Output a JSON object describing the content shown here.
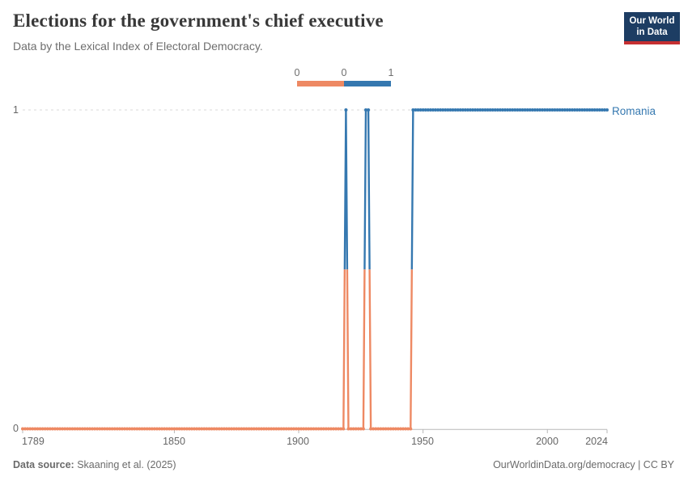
{
  "header": {
    "title": "Elections for the government's chief executive",
    "subtitle": "Data by the Lexical Index of Electoral Democracy.",
    "logo_line1": "Our World",
    "logo_line2": "in Data"
  },
  "legend": {
    "labels": [
      "0",
      "0",
      "1"
    ]
  },
  "footer": {
    "source_label": "Data source:",
    "source_text": " Skaaning et al. (2025)",
    "credit": "OurWorldinData.org/democracy | CC BY"
  },
  "chart_data": {
    "type": "line",
    "title": "Elections for the government's chief executive",
    "subtitle": "Data by the Lexical Index of Electoral Democracy.",
    "entity": "Romania",
    "xlim": [
      1789,
      2024
    ],
    "ylim": [
      0,
      1
    ],
    "x_tick_labels": [
      "1789",
      "1850",
      "1900",
      "1950",
      "2000",
      "2024"
    ],
    "x_tick_years": [
      1789,
      1850,
      1900,
      1950,
      2000,
      2024
    ],
    "y_tick_labels": [
      "0",
      "1"
    ],
    "grid": "dashed gridline at y=1 only",
    "legend_position": "top-center",
    "series": [
      {
        "name": "Romania",
        "segments": [
          {
            "from": 1789,
            "to": 1918,
            "value": 0
          },
          {
            "from": 1919,
            "to": 1919,
            "value": 1
          },
          {
            "from": 1920,
            "to": 1926,
            "value": 0
          },
          {
            "from": 1927,
            "to": 1928,
            "value": 1
          },
          {
            "from": 1929,
            "to": 1945,
            "value": 0
          },
          {
            "from": 1946,
            "to": 2024,
            "value": 1
          }
        ]
      }
    ],
    "value_colors": {
      "0": "#EE8963",
      "1": "#3578B0"
    },
    "axis_color": "#b8b8b8",
    "grid_color": "#d8d8d8"
  },
  "colors": {
    "logo_navy": "#1D3D63",
    "logo_red": "#C52F31",
    "value0_orange": "#EE8963",
    "value1_blue": "#3578B0"
  }
}
